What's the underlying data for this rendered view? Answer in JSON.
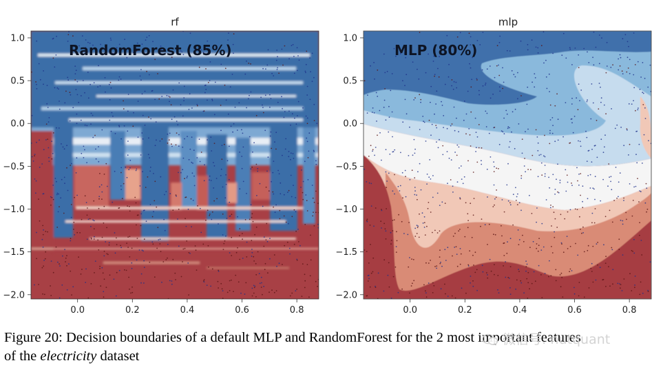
{
  "chart_data": [
    {
      "type": "heatmap",
      "title": "rf",
      "overlay_label": "RandomForest (85%)",
      "model": "RandomForest",
      "accuracy_pct": 85,
      "xlim": [
        -0.17,
        0.88
      ],
      "ylim": [
        -2.05,
        1.08
      ],
      "x_ticks": [
        0.0,
        0.2,
        0.4,
        0.6,
        0.8
      ],
      "x_tick_labels": [
        "0.0",
        "0.2",
        "0.4",
        "0.6",
        "0.8"
      ],
      "y_ticks": [
        1.0,
        0.5,
        0.0,
        -0.5,
        -1.0,
        -1.5,
        -2.0
      ],
      "y_tick_labels": [
        "1.0",
        "0.5",
        "0.0",
        "−0.5",
        "−1.0",
        "−1.5",
        "−2.0"
      ],
      "colormap": [
        "#3b6ea8",
        "#90bde0",
        "#f4f4f4",
        "#e7a38c",
        "#a83f45"
      ]
    },
    {
      "type": "heatmap",
      "title": "mlp",
      "overlay_label": "MLP (80%)",
      "model": "MLP",
      "accuracy_pct": 80,
      "xlim": [
        -0.17,
        0.88
      ],
      "ylim": [
        -2.05,
        1.08
      ],
      "x_ticks": [
        0.0,
        0.2,
        0.4,
        0.6,
        0.8
      ],
      "x_tick_labels": [
        "0.0",
        "0.2",
        "0.4",
        "0.6",
        "0.8"
      ],
      "y_ticks": [
        1.0,
        0.5,
        0.0,
        -0.5,
        -1.0,
        -1.5,
        -2.0
      ],
      "y_tick_labels": [
        "1.0",
        "0.5",
        "0.0",
        "−0.5",
        "−1.0",
        "−1.5",
        "−2.0"
      ],
      "colormap": [
        "#3f70ab",
        "#8ab9dc",
        "#c6dcee",
        "#f5f5f5",
        "#f1c8b7",
        "#d98b76",
        "#a63d42"
      ]
    }
  ],
  "caption": {
    "prefix": "Figure 20: Decision boundaries of a default MLP and RandomForest for the 2 most important features",
    "line2_start": "of the ",
    "dataset": "electricity",
    "line2_end": " dataset"
  },
  "watermark": {
    "text": "微信号: nutquant"
  },
  "colors": {
    "blue_dark": "#3b6ea8",
    "blue_light": "#c6dcee",
    "white": "#f5f5f5",
    "red_light": "#f1c8b7",
    "red_dark": "#a63d42",
    "point_blue": "#1d2f8a",
    "point_red": "#5a1414"
  }
}
